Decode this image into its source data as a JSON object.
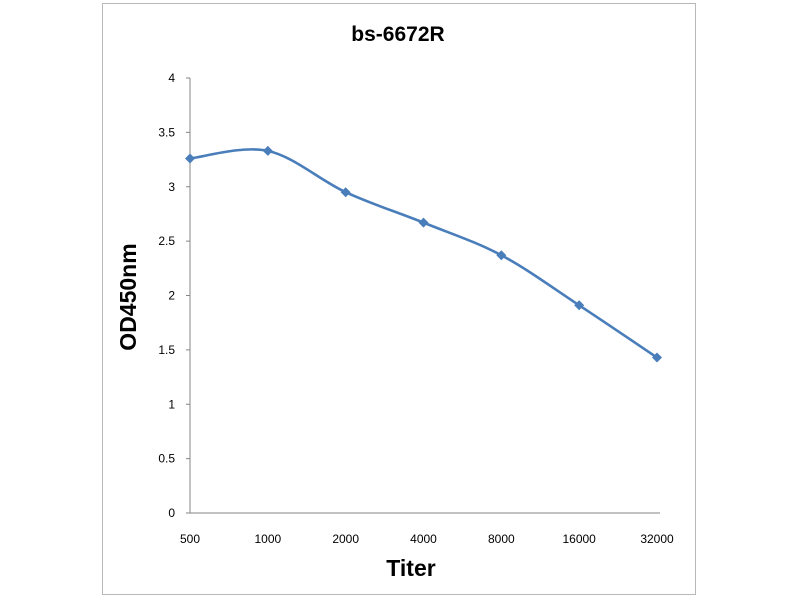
{
  "chart_data": {
    "type": "line",
    "title": "bs-6672R",
    "xlabel": "Titer",
    "ylabel": "OD450nm",
    "categories": [
      "500",
      "1000",
      "2000",
      "4000",
      "8000",
      "16000",
      "32000"
    ],
    "series": [
      {
        "values": [
          3.26,
          3.33,
          2.95,
          2.67,
          2.37,
          1.91,
          1.43
        ],
        "color": "#4a7ebb",
        "marker": "diamond",
        "smooth": true
      }
    ],
    "ylim": [
      0,
      4
    ],
    "yticks": [
      "0",
      "0.5",
      "1",
      "1.5",
      "2",
      "2.5",
      "3",
      "3.5",
      "4"
    ],
    "grid": false,
    "legend": "none"
  }
}
